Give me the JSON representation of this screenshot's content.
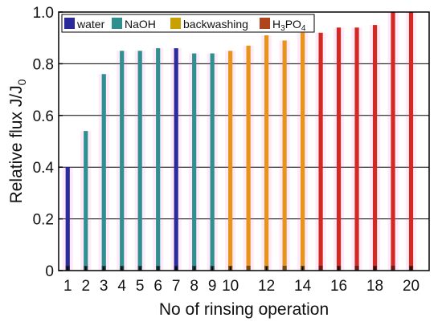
{
  "chart_data": {
    "type": "bar",
    "title": "",
    "xlabel": "No of rinsing operation",
    "ylabel": "Relative flux J/J",
    "ylabel_subscript": "0",
    "ylim": [
      0,
      1.0
    ],
    "y_ticks": [
      "0",
      "0.2",
      "0.4",
      "0.6",
      "0.8",
      "1.0"
    ],
    "x_ticks": [
      "1",
      "2",
      "3",
      "4",
      "5",
      "6",
      "7",
      "8",
      "9",
      "10",
      "12",
      "14",
      "16",
      "18",
      "20"
    ],
    "grid": "horizontal gridlines at y ticks",
    "legend_position": "top-left",
    "legend": [
      {
        "label": "water",
        "color": "#2a2a9a"
      },
      {
        "label": "NaOH",
        "color": "#2f8f8f"
      },
      {
        "label": "backwashing",
        "color": "#c8a000"
      },
      {
        "label": "H3PO4",
        "label_parts": [
          "H",
          "3",
          "PO",
          "4"
        ],
        "color": "#b0441a"
      }
    ],
    "series_colors": {
      "water": "#2b2b9e",
      "NaOH": "#2e9090",
      "backwashing": "#e8941a",
      "H3PO4": "#d22a22"
    },
    "bars": [
      {
        "x": 1,
        "value": 0.4,
        "series": "water"
      },
      {
        "x": 2,
        "value": 0.54,
        "series": "NaOH"
      },
      {
        "x": 3,
        "value": 0.76,
        "series": "NaOH"
      },
      {
        "x": 4,
        "value": 0.85,
        "series": "NaOH"
      },
      {
        "x": 5,
        "value": 0.85,
        "series": "NaOH"
      },
      {
        "x": 6,
        "value": 0.86,
        "series": "NaOH"
      },
      {
        "x": 7,
        "value": 0.86,
        "series": "water"
      },
      {
        "x": 8,
        "value": 0.84,
        "series": "NaOH"
      },
      {
        "x": 9,
        "value": 0.84,
        "series": "NaOH"
      },
      {
        "x": 10,
        "value": 0.85,
        "series": "backwashing"
      },
      {
        "x": 11,
        "value": 0.87,
        "series": "backwashing"
      },
      {
        "x": 12,
        "value": 0.91,
        "series": "backwashing"
      },
      {
        "x": 13,
        "value": 0.89,
        "series": "backwashing"
      },
      {
        "x": 14,
        "value": 0.92,
        "series": "backwashing"
      },
      {
        "x": 15,
        "value": 0.92,
        "series": "H3PO4"
      },
      {
        "x": 16,
        "value": 0.94,
        "series": "H3PO4"
      },
      {
        "x": 17,
        "value": 0.94,
        "series": "H3PO4"
      },
      {
        "x": 18,
        "value": 0.95,
        "series": "H3PO4"
      },
      {
        "x": 19,
        "value": 1.0,
        "series": "H3PO4"
      },
      {
        "x": 20,
        "value": 1.0,
        "series": "H3PO4"
      }
    ]
  }
}
